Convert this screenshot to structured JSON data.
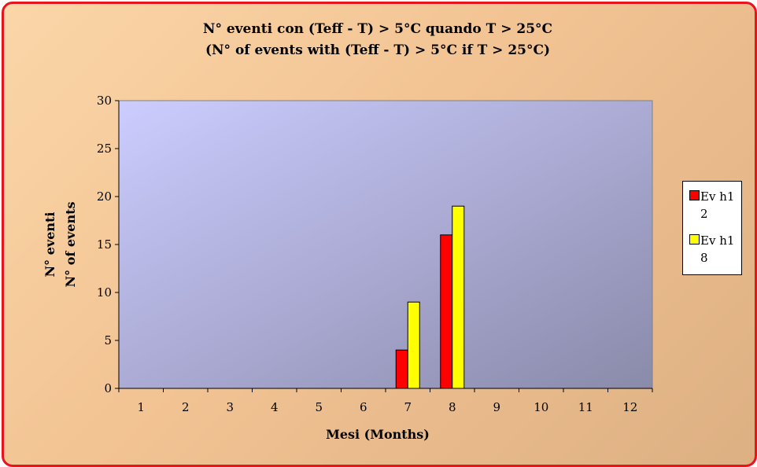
{
  "chart_data": {
    "type": "bar",
    "title": "N° eventi con (Teff - T) > 5°C quando T > 25°C",
    "subtitle": "(N° of events with (Teff - T) > 5°C if T > 25°C)",
    "xlabel": "Mesi (Months)",
    "ylabel": [
      "N° eventi",
      "N° of events"
    ],
    "categories": [
      "1",
      "2",
      "3",
      "4",
      "5",
      "6",
      "7",
      "8",
      "9",
      "10",
      "11",
      "12"
    ],
    "ylim": [
      0,
      30
    ],
    "yticks": [
      0,
      5,
      10,
      15,
      20,
      25,
      30
    ],
    "grid": false,
    "legend_position": "right",
    "series": [
      {
        "name": "Ev h12",
        "color": "#ff0000",
        "values": [
          0,
          0,
          0,
          0,
          0,
          0,
          4,
          16,
          0,
          0,
          0,
          0
        ]
      },
      {
        "name": "Ev h18",
        "color": "#ffff00",
        "values": [
          0,
          0,
          0,
          0,
          0,
          0,
          9,
          19,
          0,
          0,
          0,
          0
        ]
      }
    ]
  },
  "colors": {
    "border": "#e8141c",
    "plot_area_start": "#ccccff",
    "plot_area_end": "#8a8aaa"
  }
}
